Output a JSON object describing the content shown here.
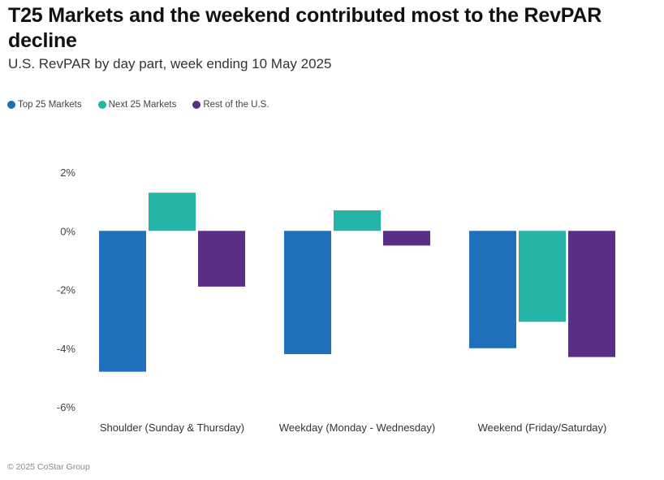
{
  "title": "T25 Markets and the weekend contributed most to the RevPAR decline",
  "subtitle": "U.S. RevPAR by day part, week ending 10 May 2025",
  "source": "© 2025 CoStar Group",
  "chart_data": {
    "type": "bar",
    "title": "T25 Markets and the weekend contributed most to the RevPAR decline",
    "subtitle": "U.S. RevPAR by day part, week ending 10 May 2025",
    "xlabel": "",
    "ylabel": "",
    "categories": [
      "Shoulder (Sunday & Thursday)",
      "Weekday (Monday - Wednesday)",
      "Weekend (Friday/Saturday)"
    ],
    "series": [
      {
        "name": "Top 25 Markets",
        "color": "#1f6fba",
        "values": [
          -4.8,
          -4.2,
          -4.0
        ]
      },
      {
        "name": "Next 25 Markets",
        "color": "#25b5a8",
        "values": [
          1.3,
          0.7,
          -3.1
        ]
      },
      {
        "name": "Rest of the U.S.",
        "color": "#5a2d86",
        "values": [
          -1.9,
          -0.5,
          -4.3
        ]
      }
    ],
    "ylim": [
      -6,
      2
    ],
    "yticks": [
      2,
      0,
      -2,
      -4,
      -6
    ],
    "ytick_labels": [
      "2%",
      "0%",
      "-2%",
      "-4%",
      "-6%"
    ],
    "grid": false,
    "legend_position": "top-left",
    "units": "%"
  }
}
